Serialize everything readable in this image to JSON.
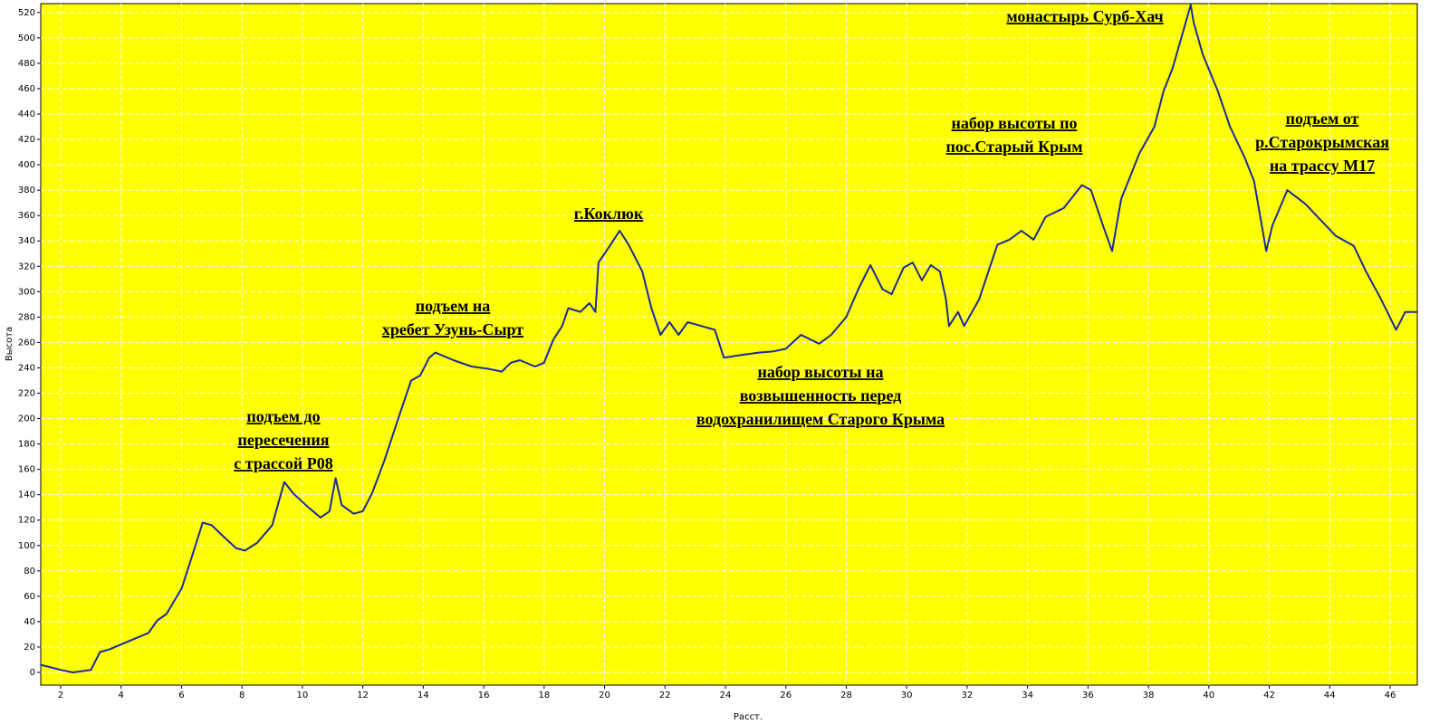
{
  "chart_data": {
    "type": "line",
    "x_label": "Расст.",
    "y_label": "Высота",
    "xlim": [
      1.34,
      46.9
    ],
    "ylim": [
      -10,
      527
    ],
    "xticks": [
      2,
      4,
      6,
      8,
      10,
      12,
      14,
      16,
      18,
      20,
      22,
      24,
      26,
      28,
      30,
      32,
      34,
      36,
      38,
      40,
      42,
      44,
      46
    ],
    "yticks": [
      0,
      20,
      40,
      60,
      80,
      100,
      120,
      140,
      160,
      180,
      200,
      220,
      240,
      260,
      280,
      300,
      320,
      340,
      360,
      380,
      400,
      420,
      440,
      460,
      480,
      500,
      520
    ],
    "grid": true,
    "background": "#ffff00",
    "series": [
      {
        "name": "Высота",
        "color": "#1a2a9a",
        "x": [
          1.34,
          2.0,
          2.4,
          3.0,
          3.3,
          3.6,
          4.0,
          4.5,
          4.9,
          5.2,
          5.5,
          6.0,
          6.3,
          6.7,
          7.0,
          7.3,
          7.8,
          8.1,
          8.5,
          9.0,
          9.4,
          9.7,
          10.2,
          10.6,
          10.9,
          11.1,
          11.3,
          11.7,
          12.0,
          12.3,
          12.7,
          13.2,
          13.6,
          13.9,
          14.2,
          14.4,
          15.0,
          15.6,
          16.2,
          16.6,
          16.9,
          17.2,
          17.7,
          18.0,
          18.3,
          18.6,
          18.8,
          19.2,
          19.5,
          19.7,
          19.8,
          20.2,
          20.5,
          20.8,
          21.25,
          21.55,
          21.85,
          22.15,
          22.45,
          22.75,
          23.2,
          23.65,
          23.95,
          24.5,
          25.1,
          25.6,
          26.0,
          26.5,
          27.1,
          27.5,
          28.0,
          28.4,
          28.8,
          29.2,
          29.5,
          29.9,
          30.2,
          30.5,
          30.8,
          31.1,
          31.3,
          31.4,
          31.7,
          31.9,
          32.4,
          33.0,
          33.4,
          33.8,
          34.2,
          34.6,
          35.2,
          35.8,
          36.1,
          36.5,
          36.8,
          37.1,
          37.4,
          37.7,
          38.2,
          38.5,
          38.8,
          39.1,
          39.4,
          39.5,
          39.8,
          40.3,
          40.7,
          41.2,
          41.5,
          41.9,
          42.1,
          42.6,
          43.2,
          43.6,
          44.2,
          44.8,
          45.2,
          45.7,
          46.2,
          46.5,
          46.9
        ],
        "values": [
          6,
          2,
          0,
          2,
          16,
          18,
          22,
          27,
          31,
          41,
          46,
          66,
          88,
          118,
          116,
          109,
          98,
          96,
          102,
          116,
          150,
          141,
          130,
          122,
          127,
          153,
          132,
          125,
          127,
          141,
          166,
          202,
          230,
          234,
          248,
          252,
          246,
          241,
          239,
          237,
          244,
          246,
          241,
          244,
          262,
          273,
          287,
          284,
          291,
          284,
          323,
          337,
          348,
          337,
          316,
          287,
          266,
          276,
          266,
          276,
          273,
          270,
          248,
          250,
          252,
          253,
          255,
          266,
          259,
          266,
          280,
          302,
          321,
          302,
          298,
          319,
          323,
          309,
          321,
          316,
          294,
          273,
          284,
          273,
          294,
          337,
          341,
          348,
          341,
          359,
          366,
          384,
          380,
          352,
          332,
          373,
          391,
          409,
          430,
          458,
          476,
          501,
          526,
          512,
          487,
          458,
          430,
          405,
          387,
          332,
          352,
          380,
          369,
          359,
          344,
          336,
          316,
          294,
          270,
          284,
          284
        ]
      }
    ],
    "annotations": [
      [
        "подъем до",
        "пересечения",
        "с трассой Р08"
      ],
      [
        "подъем на",
        "хребет Узунь-Сырт"
      ],
      [
        "г.Коклюк"
      ],
      [
        "набор высоты на",
        "возвышенность перед",
        "водохранилищем Старого Крыма"
      ],
      [
        "монастырь Сурб-Хач"
      ],
      [
        "набор высоты по",
        "пос.Старый Крым"
      ],
      [
        "подъем от",
        "р.Старокрымская",
        "на трассу М17"
      ]
    ]
  }
}
